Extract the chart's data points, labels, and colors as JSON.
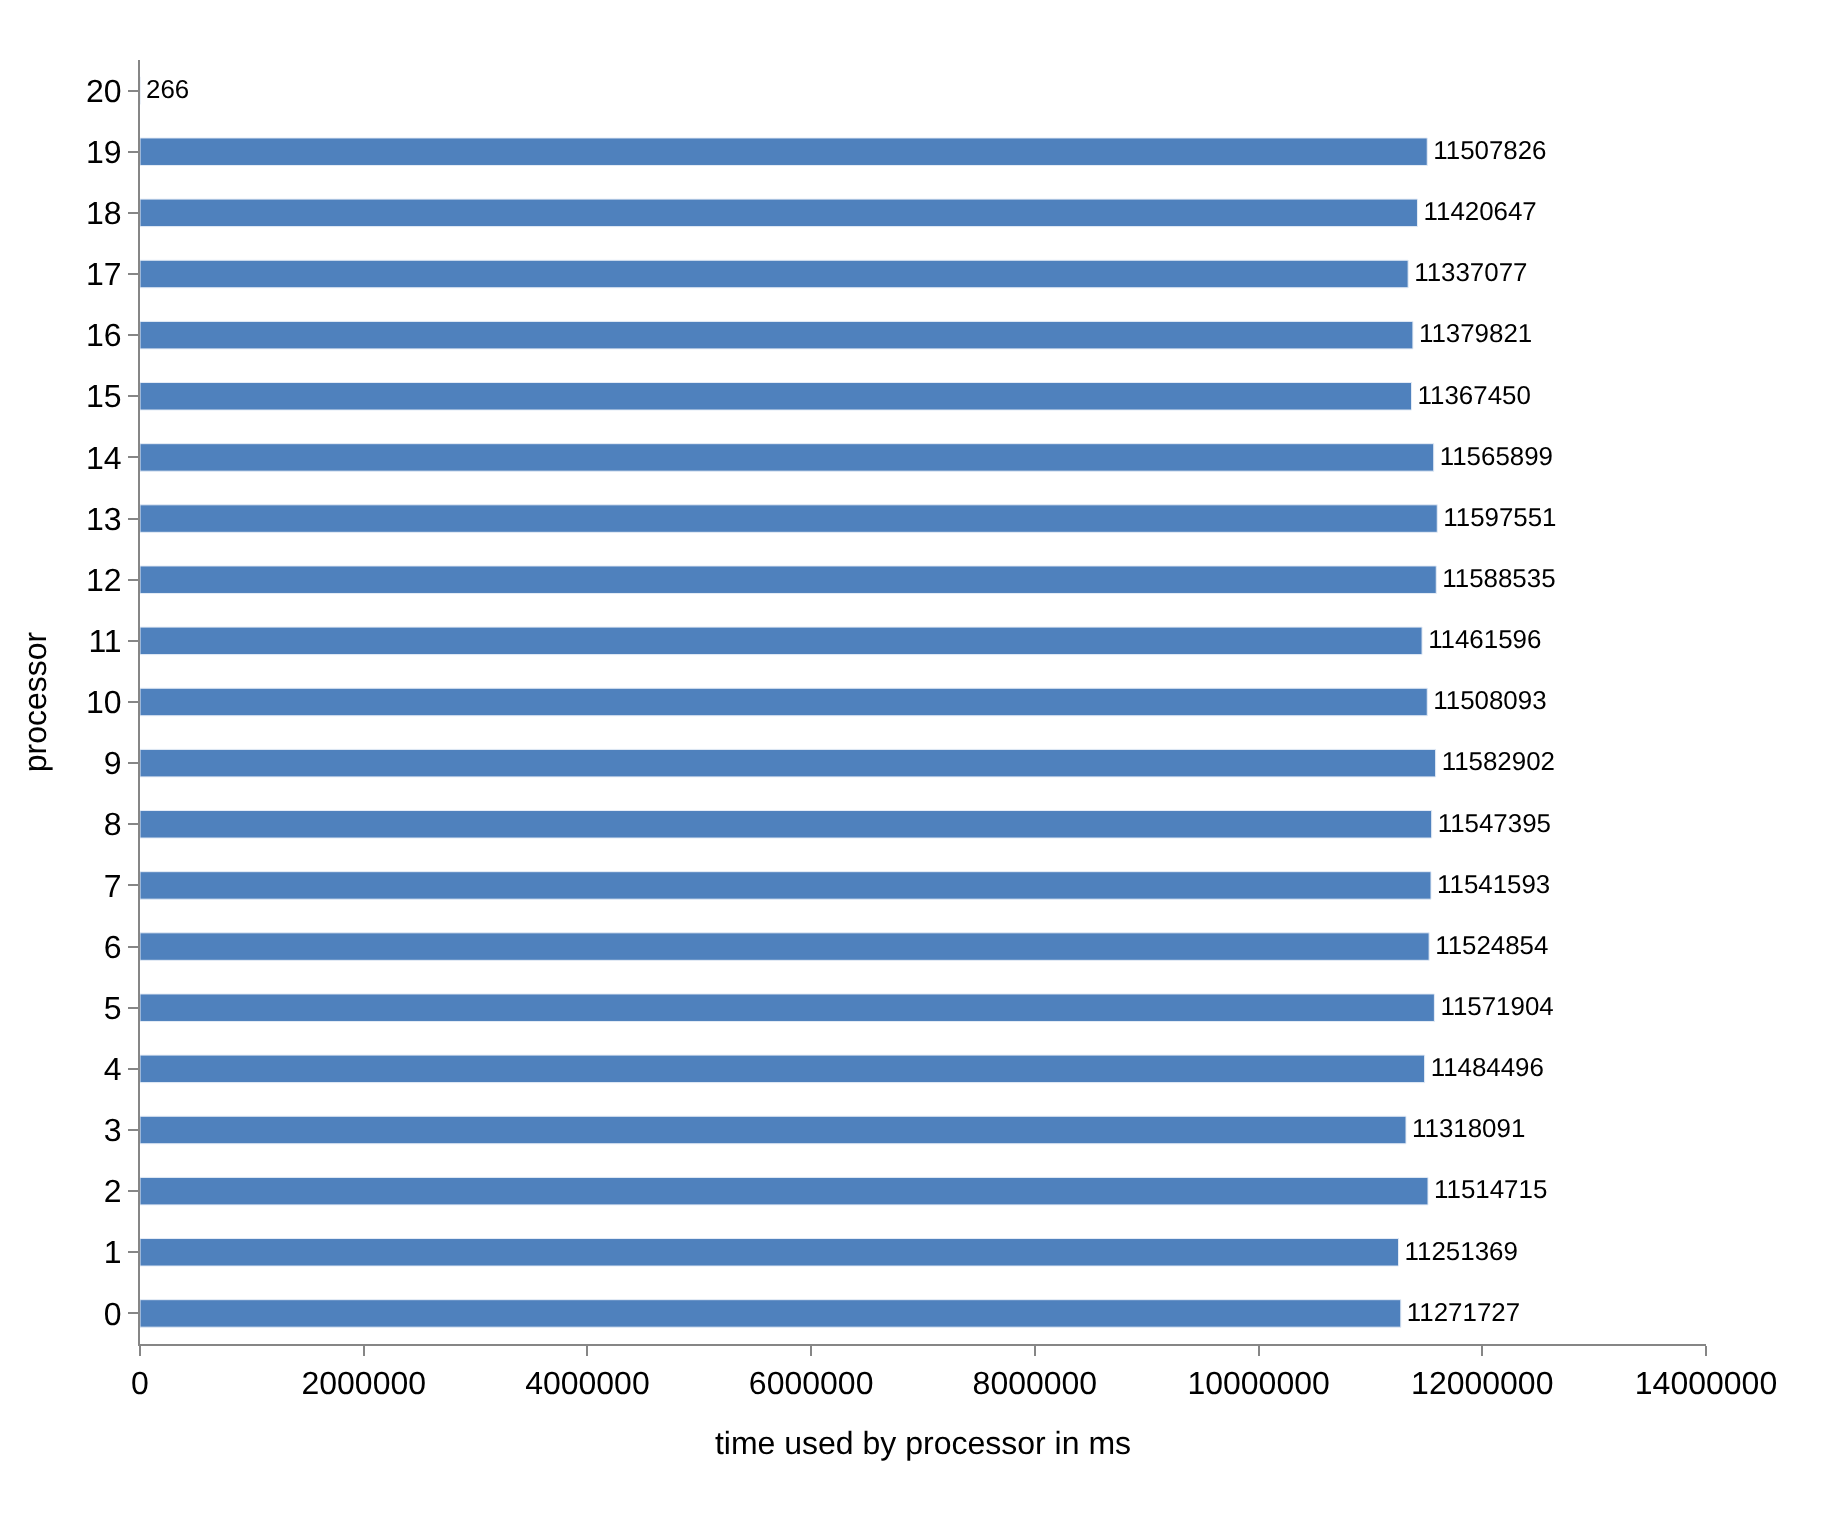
{
  "chart_data": {
    "type": "bar",
    "orientation": "horizontal",
    "xlabel": "time used by processor in ms",
    "ylabel": "processor",
    "categories": [
      "20",
      "19",
      "18",
      "17",
      "16",
      "15",
      "14",
      "13",
      "12",
      "11",
      "10",
      "9",
      "8",
      "7",
      "6",
      "5",
      "4",
      "3",
      "2",
      "1",
      "0"
    ],
    "values": [
      266,
      11507826,
      11420647,
      11337077,
      11379821,
      11367450,
      11565899,
      11597551,
      11588535,
      11461596,
      11508093,
      11582902,
      11547395,
      11541593,
      11524854,
      11571904,
      11484496,
      11318091,
      11514715,
      11251369,
      11271727
    ],
    "color": "#4f81bd",
    "xlim": [
      0,
      14000000
    ],
    "xticks": [
      0,
      2000000,
      4000000,
      6000000,
      8000000,
      10000000,
      12000000,
      14000000
    ],
    "data_labels": true
  }
}
